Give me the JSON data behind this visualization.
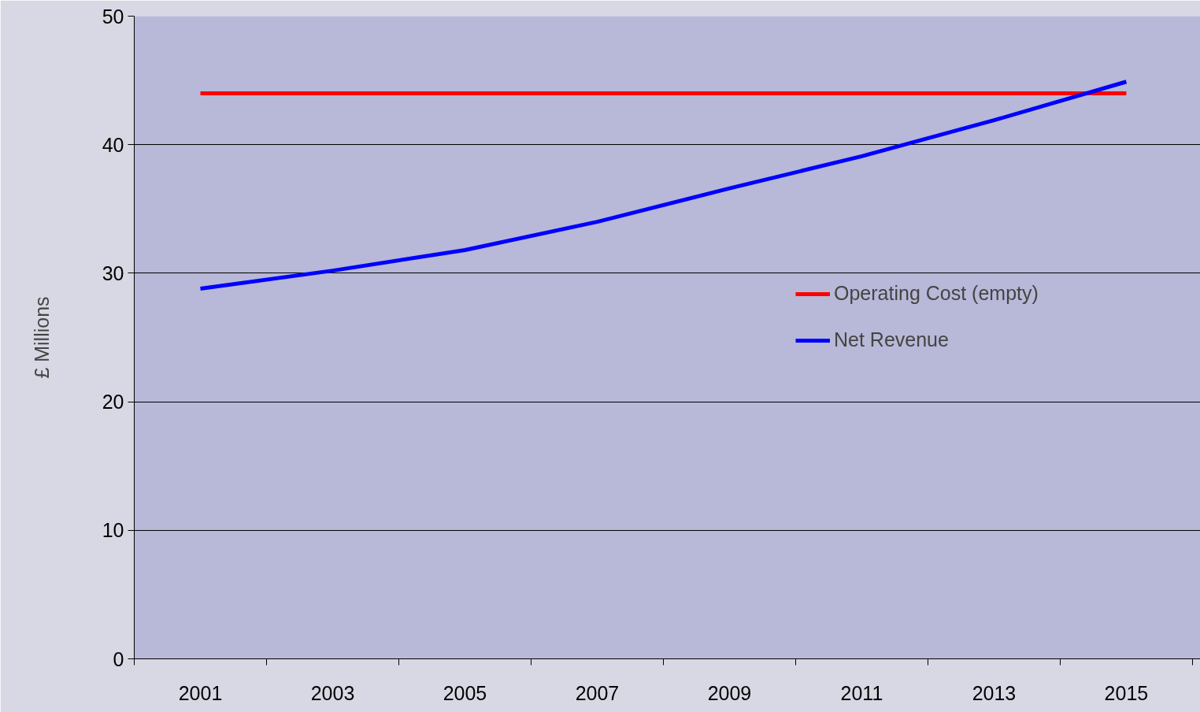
{
  "chart_data": {
    "type": "line",
    "ylabel": "£ Millions",
    "categories": [
      "2001",
      "2003",
      "2005",
      "2007",
      "2009",
      "2011",
      "2013",
      "2015"
    ],
    "series": [
      {
        "name": "Operating Cost (empty)",
        "color": "#ff0000",
        "values": [
          44,
          44,
          44,
          44,
          44,
          44,
          44,
          44
        ]
      },
      {
        "name": "Net Revenue",
        "color": "#0000ff",
        "values": [
          28.8,
          30.2,
          31.8,
          34.0,
          36.6,
          39.1,
          41.9,
          44.9
        ]
      }
    ],
    "ylim": [
      0,
      50
    ],
    "yticks": [
      0,
      10,
      20,
      30,
      40,
      50
    ],
    "grid": "y",
    "legend": "right",
    "marker": "none",
    "line_style": "solid"
  }
}
